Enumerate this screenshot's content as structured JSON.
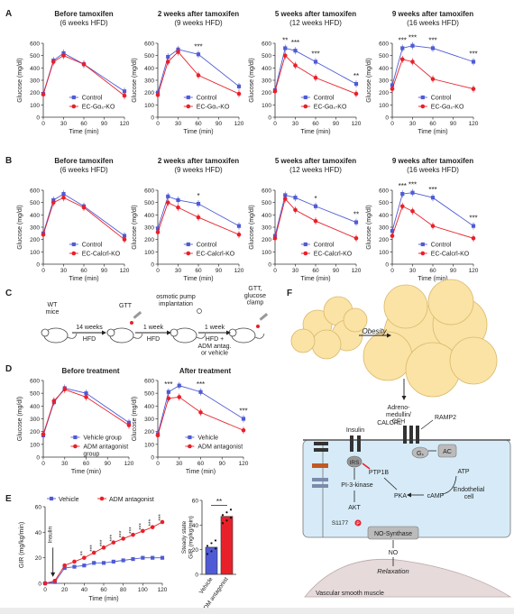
{
  "colors": {
    "control": "#4f5bd5",
    "ko": "#e8202a",
    "cell_bg": "#d6ebf7",
    "fat": "#fbe3a6",
    "fat_stroke": "#d9b86a",
    "muscle": "#e6dada"
  },
  "panels": {
    "A": {
      "letter": "A",
      "ylabel": "Glucose (mg/dl)",
      "xlabel": "Time (min)",
      "legend": [
        "Control",
        "EC-Gαₛ-KO"
      ],
      "subplots": [
        {
          "title": "Before tamoxifen",
          "subtitle": "(6 weeks HFD)",
          "control": [
            190,
            460,
            520,
            430,
            210
          ],
          "ko": [
            185,
            450,
            500,
            430,
            175
          ],
          "sig": [
            "",
            "",
            "",
            "",
            ""
          ]
        },
        {
          "title": "2 weeks after tamoxifen",
          "subtitle": "(9 weeks HFD)",
          "control": [
            200,
            490,
            550,
            510,
            250
          ],
          "ko": [
            180,
            450,
            530,
            340,
            190
          ],
          "sig": [
            "",
            "",
            "",
            "***",
            ""
          ]
        },
        {
          "title": "5 weeks after tamoxifen",
          "subtitle": "(12 weeks HFD)",
          "control": [
            220,
            560,
            540,
            450,
            270
          ],
          "ko": [
            210,
            500,
            420,
            320,
            190
          ],
          "sig": [
            "",
            "**",
            "***",
            "***",
            "**"
          ]
        },
        {
          "title": "9 weeks after tamoxifen",
          "subtitle": "(16 weeks HFD)",
          "control": [
            260,
            560,
            580,
            560,
            450
          ],
          "ko": [
            230,
            470,
            450,
            310,
            230
          ],
          "sig": [
            "",
            "***",
            "***",
            "***",
            "***"
          ]
        }
      ]
    },
    "B": {
      "letter": "B",
      "ylabel": "Glucose (mg/dl)",
      "xlabel": "Time (min)",
      "legend": [
        "Control",
        "EC-Calcrl-KO"
      ],
      "subplots": [
        {
          "title": "Before tamoxifen",
          "subtitle": "(6 weeks HFD)",
          "control": [
            250,
            520,
            570,
            470,
            230
          ],
          "ko": [
            240,
            500,
            540,
            460,
            200
          ],
          "sig": [
            "",
            "",
            "",
            "",
            ""
          ]
        },
        {
          "title": "2 weeks after tamoxifen",
          "subtitle": "(9 weeks HFD)",
          "control": [
            290,
            550,
            520,
            490,
            310
          ],
          "ko": [
            260,
            500,
            460,
            380,
            240
          ],
          "sig": [
            "",
            "",
            "",
            "*",
            ""
          ]
        },
        {
          "title": "5 weeks after tamoxifen",
          "subtitle": "(12 weeks HFD)",
          "control": [
            230,
            560,
            540,
            470,
            340
          ],
          "ko": [
            210,
            530,
            440,
            350,
            210
          ],
          "sig": [
            "",
            "",
            "",
            "*",
            "**"
          ]
        },
        {
          "title": "9 weeks after tamoxifen",
          "subtitle": "(16 weeks HFD)",
          "control": [
            270,
            570,
            580,
            540,
            310
          ],
          "ko": [
            230,
            470,
            430,
            310,
            210
          ],
          "sig": [
            "",
            "***",
            "***",
            "***",
            "***"
          ]
        }
      ]
    },
    "C": {
      "letter": "C",
      "wt_label": "WT\nmice",
      "gtt1": "GTT",
      "pump": "osmotic pump\nimplantation",
      "gtt2": "GTT,\nglucose\nclamp",
      "arrow1_top": "14 weeks",
      "arrow1_bottom": "HFD",
      "arrow2_top": "1 week",
      "arrow2_bottom": "HFD",
      "arrow3_top": "1 week",
      "arrow3_bottom": "HFD +\nADM antag.\nor vehicle"
    },
    "D": {
      "letter": "D",
      "ylabel": "Glucose (mg/dl)",
      "xlabel": "Time (min)",
      "subplots": [
        {
          "title": "Before treatment",
          "legend": [
            "Vehicle group",
            "ADM antagonist\ngroup"
          ],
          "control": [
            170,
            430,
            540,
            500,
            270
          ],
          "ko": [
            180,
            440,
            530,
            470,
            250
          ],
          "sig": [
            "",
            "",
            "",
            "",
            ""
          ]
        },
        {
          "title": "After treatment",
          "legend": [
            "Vehicle",
            "ADM antagonist"
          ],
          "control": [
            180,
            510,
            560,
            510,
            300
          ],
          "ko": [
            170,
            460,
            470,
            350,
            210
          ],
          "sig": [
            "",
            "***",
            "",
            "***",
            "***"
          ]
        }
      ]
    },
    "E": {
      "letter": "E",
      "ylabel": "GIR (mg/kg/min)",
      "xlabel": "Time (min)",
      "legend": [
        "Vehicle",
        "ADM antagonist"
      ],
      "insulin_label": "Insulin",
      "x": [
        0,
        10,
        20,
        30,
        40,
        50,
        60,
        70,
        80,
        90,
        100,
        110,
        120
      ],
      "vehicle": [
        0,
        1,
        12,
        13,
        14,
        16,
        16,
        17,
        18,
        19,
        20,
        20,
        20
      ],
      "antagonist": [
        0,
        2,
        14,
        17,
        20,
        24,
        28,
        32,
        35,
        38,
        41,
        44,
        48
      ],
      "sig": [
        "",
        "",
        "",
        "",
        "**",
        "***",
        "***",
        "***",
        "***",
        "***",
        "***",
        "***",
        "***"
      ],
      "bar_ylabel": "Steady state\nGIR (mg/kg/min)",
      "bar_categories": [
        "Vehicle",
        "ADM antagonist"
      ],
      "bar_values": [
        22,
        47
      ],
      "bar_sig": "**",
      "chart_data": [
        {
          "type": "line",
          "x": [
            0,
            10,
            20,
            30,
            40,
            50,
            60,
            70,
            80,
            90,
            100,
            110,
            120
          ],
          "series": [
            {
              "name": "Vehicle",
              "values": [
                0,
                1,
                12,
                13,
                14,
                16,
                16,
                17,
                18,
                19,
                20,
                20,
                20
              ]
            },
            {
              "name": "ADM antagonist",
              "values": [
                0,
                2,
                14,
                17,
                20,
                24,
                28,
                32,
                35,
                38,
                41,
                44,
                48
              ]
            }
          ],
          "xlabel": "Time (min)",
          "ylabel": "GIR (mg/kg/min)",
          "ylim": [
            0,
            60
          ]
        },
        {
          "type": "bar",
          "categories": [
            "Vehicle",
            "ADM antagonist"
          ],
          "values": [
            22,
            47
          ],
          "ylabel": "Steady state GIR (mg/kg/min)",
          "ylim": [
            0,
            60
          ]
        }
      ]
    },
    "F": {
      "letter": "F",
      "obesity": "Obesity",
      "adm": "Adreno-\nmedullin/\nCFH",
      "calcrl": "CALCRL",
      "ramp2": "RAMP2",
      "gs": "Gₛ",
      "ac": "AC",
      "atp": "ATP",
      "camp": "cAMP",
      "pka": "PKA",
      "insulin": "Insulin",
      "irs": "IRS",
      "ptp1b": "PTP1B",
      "pi3k": "PI-3-kinase",
      "akt": "AKT",
      "s1177": "S1177",
      "p": "P",
      "nos": "NO-Synthase",
      "endo": "Endothelial\ncell",
      "no": "NO",
      "relax": "Relaxation",
      "vsm": "Vascular smooth muscle"
    }
  },
  "glucose_axis": {
    "x": [
      0,
      15,
      30,
      60,
      120
    ],
    "xticks": [
      0,
      30,
      60,
      90,
      120
    ],
    "yticks": [
      0,
      100,
      200,
      300,
      400,
      500,
      600
    ]
  }
}
